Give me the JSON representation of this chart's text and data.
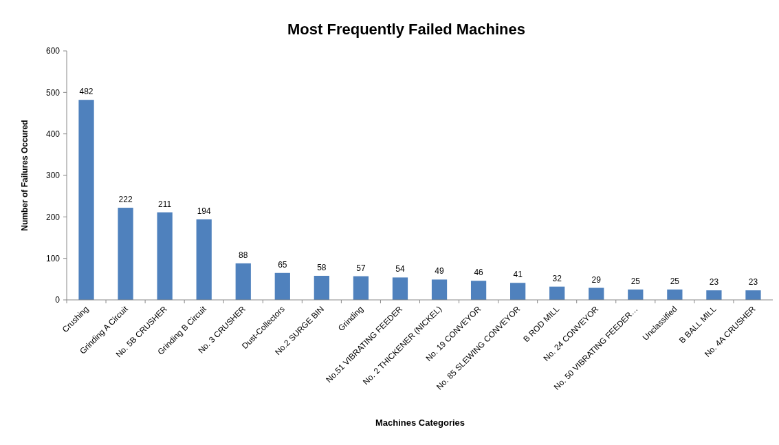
{
  "chart_data": {
    "type": "bar",
    "title": "Most Frequently Failed Machines",
    "xlabel": "Machines Categories",
    "ylabel": "Number of Failures  Occured",
    "categories": [
      "Crushing",
      "Grinding A Circuit",
      "No. 5B CRUSHER",
      "Grinding B Circuit",
      "No. 3 CRUSHER",
      "Dust-Collectors",
      "No.2 SURGE BIN",
      "Grinding",
      "No.51 VIBRATING  FEEDER",
      "No. 2 THICKENER  (NICKEL)",
      "No. 19 CONVEYOR",
      "No. 85 SLEWING CONVEYOR",
      "B ROD MILL",
      "No. 24 CONVEYOR",
      "No. 50 VIBRATING  FEEDER…",
      "Unclassified",
      "B BALL MILL",
      "No. 4A CRUSHER"
    ],
    "values": [
      482,
      222,
      211,
      194,
      88,
      65,
      58,
      57,
      54,
      49,
      46,
      41,
      32,
      29,
      25,
      25,
      23,
      23
    ],
    "color": "#4f81bd",
    "ylim": [
      0,
      600
    ],
    "yticks": [
      0,
      100,
      200,
      300,
      400,
      500,
      600
    ],
    "data_labels": true
  }
}
